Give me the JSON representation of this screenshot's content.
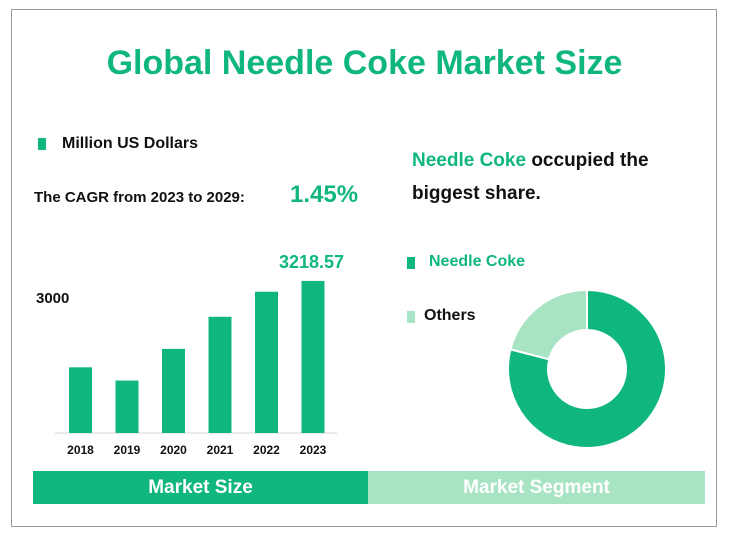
{
  "title": "Global Needle Coke Market Size",
  "colors": {
    "primary": "#10b77d",
    "secondary": "#a8e4c3"
  },
  "bar_legend": "Million US Dollars",
  "cagr": {
    "label": "The CAGR from 2023 to 2029:",
    "value": "1.45%"
  },
  "share_text": {
    "highlight": "Needle Coke",
    "rest": " occupied the biggest share."
  },
  "tabs": {
    "left": "Market Size",
    "right": "Market Segment"
  },
  "chart_data": [
    {
      "type": "bar",
      "categories": [
        "2018",
        "2019",
        "2020",
        "2021",
        "2022",
        "2023"
      ],
      "series": [
        {
          "name": "Million US Dollars",
          "values": [
            1390,
            1110,
            1780,
            2460,
            2990,
            3218.57
          ]
        }
      ],
      "yticks": [
        "3000"
      ],
      "data_labels": [
        "",
        "",
        "",
        "",
        "",
        "3218.57"
      ],
      "ylim": [
        0,
        3450
      ]
    },
    {
      "type": "pie",
      "donut": true,
      "labels": [
        "Needle Coke",
        "Others"
      ],
      "values": [
        79,
        21
      ],
      "colors": [
        "#10b77d",
        "#a8e4c3"
      ],
      "legend": "left"
    }
  ]
}
